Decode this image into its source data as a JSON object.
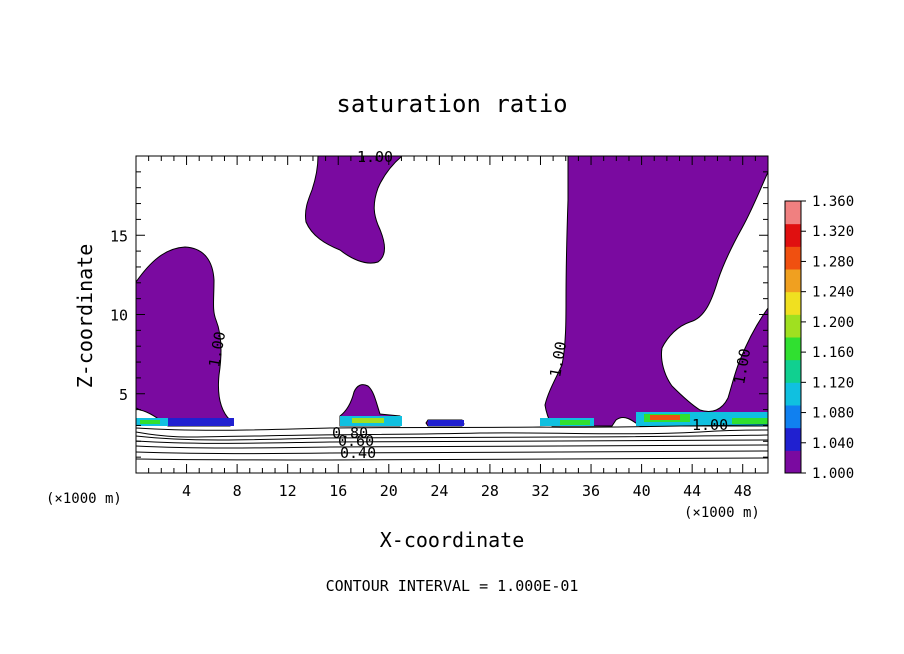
{
  "chart_data": {
    "type": "contour",
    "title": "saturation ratio",
    "xlabel": "X-coordinate",
    "ylabel": "Z-coordinate",
    "x_unit": "(×1000 m)",
    "y_unit": "(×1000 m)",
    "xlim": [
      0,
      50
    ],
    "ylim": [
      0,
      20
    ],
    "x_ticks": [
      4,
      8,
      12,
      16,
      20,
      24,
      28,
      32,
      36,
      40,
      44,
      48
    ],
    "y_ticks": [
      5,
      10,
      15
    ],
    "footer": "CONTOUR INTERVAL = 1.000E-01",
    "colorbar": {
      "ticks": [
        "1.360",
        "1.320",
        "1.280",
        "1.240",
        "1.200",
        "1.160",
        "1.120",
        "1.080",
        "1.040",
        "1.000"
      ],
      "min": 1.0,
      "max": 1.36,
      "colors": [
        "#7a0aa0",
        "#2020d0",
        "#1080f0",
        "#10c0e0",
        "#10d090",
        "#30e030",
        "#a0e020",
        "#f0e020",
        "#f0a020",
        "#f05010",
        "#e01010",
        "#f08080"
      ]
    },
    "contour_labels": [
      "1.00",
      "1.00",
      "1.00",
      "1.00",
      "1.00",
      "0.80",
      "0.60",
      "0.40"
    ],
    "regions_above_1": [
      {
        "name": "left-column",
        "x_range": [
          0,
          6.3
        ],
        "z_range": [
          3.0,
          14.2
        ]
      },
      {
        "name": "upper-plume",
        "x_range": [
          13.4,
          21.0
        ],
        "z_range": [
          13.5,
          20.0
        ]
      },
      {
        "name": "small-dome",
        "x_range": [
          15.5,
          20.5
        ],
        "z_range": [
          3.2,
          5.6
        ]
      },
      {
        "name": "right-plume",
        "x_range": [
          30.5,
          50.0
        ],
        "z_range": [
          3.2,
          20.0
        ]
      }
    ]
  }
}
